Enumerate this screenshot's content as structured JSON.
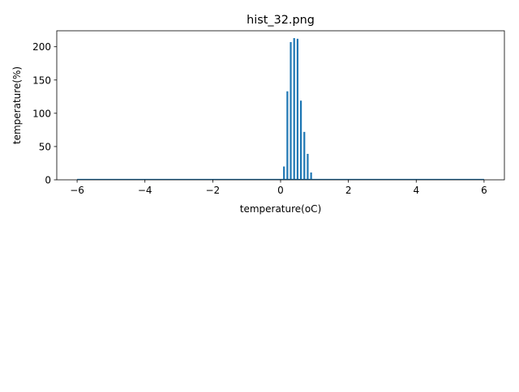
{
  "chart_data": {
    "type": "bar",
    "title": "hist_32.png",
    "xlabel": "temperature(oC)",
    "ylabel": "temperature(%)",
    "xlim": [
      -6.6,
      6.6
    ],
    "ylim": [
      0,
      224
    ],
    "xticks": [
      -6,
      -4,
      -2,
      0,
      2,
      4,
      6
    ],
    "xtick_labels": [
      "−6",
      "−4",
      "−2",
      "0",
      "2",
      "4",
      "6"
    ],
    "yticks": [
      0,
      50,
      100,
      150,
      200
    ],
    "ytick_labels": [
      "0",
      "50",
      "100",
      "150",
      "200"
    ],
    "bar_color": "#1f77b4",
    "baseline_range": [
      -6,
      6
    ],
    "x": [
      0.1,
      0.2,
      0.3,
      0.4,
      0.5,
      0.6,
      0.7,
      0.8,
      0.9
    ],
    "values": [
      20,
      133,
      207,
      213,
      212,
      119,
      72,
      39,
      11
    ],
    "grid": false,
    "legend": "none"
  }
}
